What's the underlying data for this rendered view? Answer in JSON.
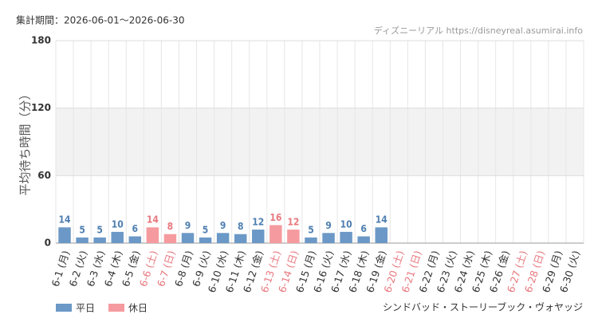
{
  "chart_data": {
    "type": "bar",
    "subtitle": "集計期間：2026-06-01～2026-06-30",
    "source": "ディズニーリアル https://disneyreal.asumirai.info",
    "y_label": "平均待ち時間（分）",
    "caption": "シンドバッド・ストーリーブック・ヴォヤッジ",
    "categories": [
      "6-1 (月)",
      "6-2 (火)",
      "6-3 (水)",
      "6-4 (木)",
      "6-5 (金)",
      "6-6 (土)",
      "6-7 (日)",
      "6-8 (月)",
      "6-9 (火)",
      "6-10 (水)",
      "6-11 (木)",
      "6-12 (金)",
      "6-13 (土)",
      "6-14 (日)",
      "6-15 (月)",
      "6-16 (火)",
      "6-17 (水)",
      "6-18 (木)",
      "6-19 (金)",
      "6-20 (土)",
      "6-21 (日)",
      "6-22 (月)",
      "6-23 (火)",
      "6-24 (水)",
      "6-25 (木)",
      "6-26 (金)",
      "6-27 (土)",
      "6-28 (日)",
      "6-29 (月)",
      "6-30 (火)"
    ],
    "category_colors": [
      "#333",
      "#333",
      "#333",
      "#333",
      "#333",
      "#e8787e",
      "#e8787e",
      "#333",
      "#333",
      "#333",
      "#333",
      "#333",
      "#e8787e",
      "#e8787e",
      "#333",
      "#333",
      "#333",
      "#333",
      "#333",
      "#e8787e",
      "#e8787e",
      "#333",
      "#333",
      "#333",
      "#333",
      "#333",
      "#e8787e",
      "#e8787e",
      "#333",
      "#333"
    ],
    "series": [
      {
        "name": "平日",
        "color": "#6b98c6",
        "label_color": "#4f7fb0",
        "values": [
          14,
          5,
          5,
          10,
          6,
          null,
          null,
          9,
          5,
          9,
          8,
          12,
          null,
          null,
          5,
          9,
          10,
          6,
          14,
          null,
          null,
          null,
          null,
          null,
          null,
          null,
          null,
          null,
          null,
          null
        ]
      },
      {
        "name": "休日",
        "color": "#f59a9e",
        "label_color": "#e8787e",
        "values": [
          null,
          null,
          null,
          null,
          null,
          14,
          8,
          null,
          null,
          null,
          null,
          null,
          16,
          12,
          null,
          null,
          null,
          null,
          null,
          null,
          null,
          null,
          null,
          null,
          null,
          null,
          null,
          null,
          null,
          null
        ]
      }
    ],
    "ylim": [
      0,
      180
    ],
    "yticks": [
      0,
      60,
      120,
      180
    ],
    "shaded_range": [
      60,
      120
    ],
    "grid": true
  }
}
